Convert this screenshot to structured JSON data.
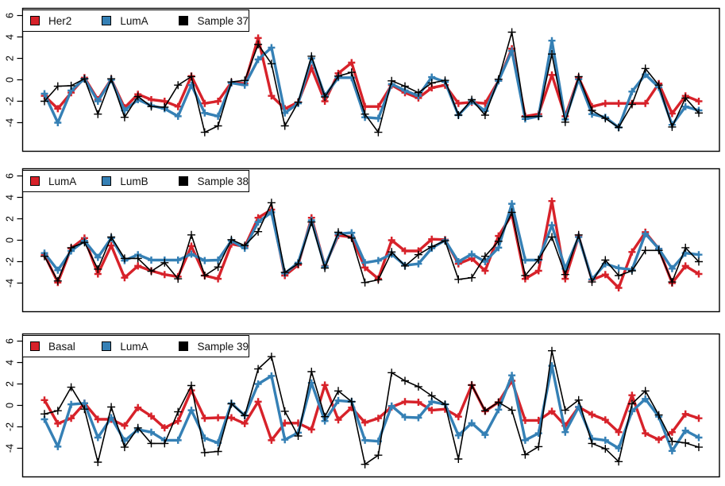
{
  "figure_title": "",
  "chart_data": [
    {
      "type": "line",
      "panel": "top",
      "title": "",
      "xlabel": "",
      "ylabel": "",
      "ylim": [
        -6.67,
        6.67
      ],
      "yticks": [
        -4,
        -2,
        0,
        2,
        4,
        6
      ],
      "x_ticks_shown": false,
      "grid": false,
      "legend_position": "top-left",
      "n_points": 50,
      "series": [
        {
          "name": "Her2",
          "color": "#d7222a",
          "line_width": 3.4,
          "marker": "+",
          "marker_size": 4.5,
          "values": [
            -1.5,
            -2.7,
            -1.2,
            0.2,
            -1.85,
            0.05,
            -2.6,
            -1.35,
            -1.85,
            -2.0,
            -2.5,
            0.35,
            -2.2,
            -2.0,
            -0.25,
            -0.35,
            3.9,
            -1.5,
            -2.7,
            -2.1,
            1.1,
            -2.0,
            0.6,
            1.6,
            -2.5,
            -2.5,
            -0.5,
            -1.2,
            -1.7,
            -0.75,
            -0.5,
            -2.2,
            -2.1,
            -2.2,
            -0.1,
            2.9,
            -3.4,
            -3.2,
            0.45,
            -3.4,
            0.2,
            -2.5,
            -2.2,
            -2.2,
            -2.2,
            -2.2,
            -0.35,
            -3.15,
            -1.5,
            -2.0
          ]
        },
        {
          "name": "LumA",
          "color": "#3580b5",
          "line_width": 3.4,
          "marker": "+",
          "marker_size": 4.5,
          "values": [
            -1.3,
            -4.0,
            -1.0,
            0.1,
            -2.0,
            0.0,
            -2.85,
            -1.85,
            -2.4,
            -2.7,
            -3.4,
            -0.5,
            -3.1,
            -3.4,
            -0.3,
            -0.5,
            1.9,
            3.0,
            -3.1,
            -2.2,
            2.0,
            -1.5,
            0.2,
            0.2,
            -3.5,
            -3.6,
            -0.4,
            -1.0,
            -1.5,
            0.25,
            -0.2,
            -3.3,
            -2.0,
            -2.9,
            -0.1,
            2.7,
            -3.65,
            -3.4,
            3.65,
            -3.7,
            0.05,
            -3.2,
            -3.5,
            -4.45,
            -1.1,
            0.5,
            -0.7,
            -4.2,
            -2.5,
            -2.85
          ]
        },
        {
          "name": "Sample 37",
          "color": "#000000",
          "line_width": 1.6,
          "marker": "+",
          "marker_size": 5,
          "values": [
            -2.0,
            -0.6,
            -0.55,
            0.1,
            -3.2,
            0.1,
            -3.5,
            -1.55,
            -2.5,
            -2.55,
            -0.5,
            0.3,
            -4.9,
            -4.3,
            -0.2,
            -0.05,
            3.3,
            1.5,
            -4.3,
            -2.1,
            2.2,
            -1.6,
            0.35,
            0.7,
            -3.2,
            -4.9,
            -0.1,
            -0.6,
            -1.2,
            -0.3,
            -0.05,
            -3.3,
            -1.85,
            -3.3,
            0.05,
            4.45,
            -3.45,
            -3.4,
            2.4,
            -3.95,
            0.3,
            -2.85,
            -3.6,
            -4.45,
            -2.3,
            1.05,
            -0.5,
            -4.4,
            -1.7,
            -3.1
          ]
        }
      ]
    },
    {
      "type": "line",
      "panel": "middle",
      "title": "",
      "xlabel": "",
      "ylabel": "",
      "ylim": [
        -6.67,
        6.67
      ],
      "yticks": [
        -4,
        -2,
        0,
        2,
        4,
        6
      ],
      "x_ticks_shown": false,
      "grid": false,
      "legend_position": "top-left",
      "n_points": 50,
      "series": [
        {
          "name": "LumA",
          "color": "#d7222a",
          "line_width": 3.4,
          "marker": "+",
          "marker_size": 4.5,
          "values": [
            -1.35,
            -3.95,
            -0.75,
            0.2,
            -3.15,
            -0.5,
            -3.5,
            -2.4,
            -2.85,
            -3.2,
            -3.4,
            -0.55,
            -3.3,
            -3.6,
            -0.35,
            -0.6,
            2.1,
            2.85,
            -3.3,
            -2.3,
            2.1,
            -2.4,
            0.45,
            0.3,
            -2.55,
            -3.6,
            0.0,
            -1.0,
            -1.0,
            0.1,
            0.05,
            -2.2,
            -1.7,
            -2.85,
            0.4,
            2.4,
            -3.6,
            -2.85,
            3.65,
            -3.6,
            0.35,
            -3.7,
            -3.2,
            -4.45,
            -1.1,
            0.75,
            -0.8,
            -4.0,
            -2.4,
            -3.15
          ]
        },
        {
          "name": "LumB",
          "color": "#3580b5",
          "line_width": 3.4,
          "marker": "+",
          "marker_size": 4.5,
          "values": [
            -1.2,
            -2.8,
            -1.0,
            -0.05,
            -1.6,
            0.2,
            -1.9,
            -1.35,
            -1.85,
            -1.85,
            -1.85,
            -1.3,
            -1.9,
            -1.85,
            -0.05,
            -0.75,
            1.7,
            2.6,
            -3.1,
            -2.1,
            1.85,
            -2.45,
            0.6,
            0.7,
            -2.1,
            -1.9,
            -1.3,
            -2.35,
            -2.2,
            -0.75,
            0.0,
            -2.0,
            -1.3,
            -2.0,
            -0.7,
            3.4,
            -1.85,
            -1.85,
            1.4,
            -2.65,
            0.3,
            -3.65,
            -2.2,
            -2.6,
            -2.75,
            0.6,
            -0.8,
            -2.65,
            -1.2,
            -1.35
          ]
        },
        {
          "name": "Sample 38",
          "color": "#000000",
          "line_width": 1.6,
          "marker": "+",
          "marker_size": 5,
          "values": [
            -1.5,
            -3.8,
            -0.7,
            -0.2,
            -2.7,
            0.3,
            -1.7,
            -1.7,
            -2.9,
            -2.1,
            -3.6,
            0.5,
            -3.3,
            -2.5,
            0.05,
            -0.5,
            0.8,
            3.5,
            -3.0,
            -2.2,
            1.7,
            -2.6,
            0.75,
            0.2,
            -3.95,
            -3.7,
            -1.1,
            -2.4,
            -1.35,
            -0.6,
            -0.05,
            -3.65,
            -3.5,
            -1.5,
            -0.1,
            2.6,
            -3.3,
            -1.8,
            0.3,
            -3.2,
            0.5,
            -3.9,
            -1.85,
            -3.3,
            -2.85,
            -0.95,
            -0.95,
            -3.9,
            -0.7,
            -2.0
          ]
        }
      ]
    },
    {
      "type": "line",
      "panel": "bottom",
      "title": "",
      "xlabel": "",
      "ylabel": "",
      "ylim": [
        -6.67,
        6.67
      ],
      "yticks": [
        -4,
        -2,
        0,
        2,
        4,
        6
      ],
      "x_ticks_shown": false,
      "grid": false,
      "legend_position": "top-left",
      "n_points": 50,
      "series": [
        {
          "name": "Basal",
          "color": "#d7222a",
          "line_width": 3.4,
          "marker": "+",
          "marker_size": 4.5,
          "values": [
            0.5,
            -1.7,
            -1.2,
            0.2,
            -1.3,
            -1.3,
            -1.9,
            -0.2,
            -1.0,
            -2.1,
            -1.45,
            1.4,
            -1.2,
            -1.15,
            -1.15,
            -1.7,
            0.35,
            -3.25,
            -1.65,
            -1.65,
            -2.25,
            1.9,
            -1.35,
            -0.2,
            -1.6,
            -1.2,
            -0.15,
            0.35,
            0.3,
            -0.45,
            -0.35,
            -1.05,
            1.9,
            -0.55,
            0.3,
            2.3,
            -1.4,
            -1.4,
            -0.55,
            -1.9,
            -0.15,
            -0.85,
            -1.35,
            -2.5,
            0.95,
            -2.6,
            -3.2,
            -2.5,
            -0.8,
            -1.2
          ]
        },
        {
          "name": "LumA",
          "color": "#3580b5",
          "line_width": 3.4,
          "marker": "+",
          "marker_size": 4.5,
          "values": [
            -1.3,
            -3.85,
            0.1,
            0.2,
            -3.0,
            -1.15,
            -3.3,
            -2.25,
            -2.5,
            -3.25,
            -3.25,
            -0.45,
            -3.05,
            -3.5,
            0.2,
            -0.95,
            2.0,
            2.75,
            -3.2,
            -2.55,
            2.1,
            -1.45,
            0.45,
            0.35,
            -3.25,
            -3.35,
            -0.05,
            -1.1,
            -1.15,
            0.35,
            0.1,
            -2.8,
            -1.65,
            -2.75,
            -0.4,
            2.8,
            -3.25,
            -2.6,
            3.7,
            -2.5,
            -0.15,
            -3.1,
            -3.25,
            -4.0,
            -0.55,
            0.6,
            -1.05,
            -4.25,
            -2.35,
            -3.0
          ]
        },
        {
          "name": "Sample 39",
          "color": "#000000",
          "line_width": 1.6,
          "marker": "+",
          "marker_size": 5,
          "values": [
            -0.8,
            -0.5,
            1.7,
            -0.35,
            -5.3,
            -0.15,
            -3.9,
            -2.1,
            -3.55,
            -3.55,
            -0.6,
            1.85,
            -4.4,
            -4.3,
            0.15,
            -0.95,
            3.4,
            4.55,
            -0.55,
            -2.85,
            3.15,
            -1.05,
            1.35,
            0.35,
            -5.5,
            -4.65,
            3.05,
            2.3,
            1.75,
            0.9,
            0.1,
            -5.0,
            1.9,
            -0.5,
            0.3,
            -0.45,
            -4.6,
            -3.85,
            5.1,
            -0.45,
            0.5,
            -3.55,
            -4.05,
            -5.25,
            0.15,
            1.35,
            -0.9,
            -3.35,
            -3.5,
            -3.9
          ]
        }
      ]
    }
  ]
}
